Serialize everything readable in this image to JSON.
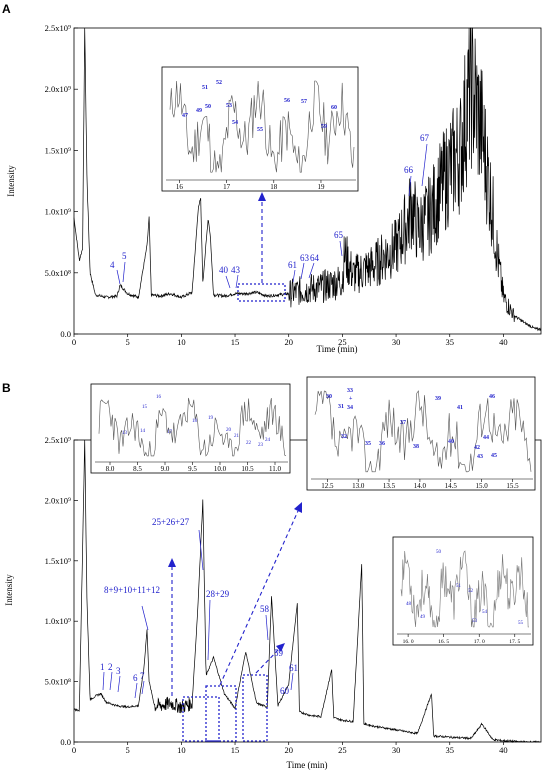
{
  "panels": [
    {
      "label": "A",
      "x_title": "Time (min)",
      "y_title": "Intensity",
      "x_ticks": [
        "0",
        "5",
        "10",
        "15",
        "20",
        "25",
        "30",
        "35",
        "40"
      ],
      "y_ticks": [
        "0.0",
        "5.0x10⁸",
        "1.0x10⁹",
        "1.5x10⁹",
        "2.0x10⁹",
        "2.5x10⁹"
      ],
      "peak_labels": [
        "4",
        "5",
        "40",
        "43",
        "61",
        "63",
        "64",
        "65",
        "66",
        "67"
      ],
      "insets": [
        {
          "x_ticks": [
            "16",
            "17",
            "18",
            "19"
          ],
          "peak_labels": [
            "47",
            "49",
            "50",
            "51",
            "52",
            "53",
            "54",
            "55",
            "56",
            "57",
            "59",
            "60"
          ]
        }
      ]
    },
    {
      "label": "B",
      "x_title": "Time (min)",
      "y_title": "Intensity",
      "x_ticks": [
        "0",
        "5",
        "10",
        "15",
        "20",
        "25",
        "30",
        "35",
        "40"
      ],
      "y_ticks": [
        "0.0",
        "5.0x10⁸",
        "1.0x10⁹",
        "1.5x10⁹",
        "2.0x10⁹",
        "2.5x10⁹"
      ],
      "peak_labels": [
        "1",
        "2",
        "3",
        "6",
        "7",
        "8+9+10+11+12",
        "25+26+27",
        "28+29",
        "58",
        "59",
        "60",
        "61"
      ],
      "insets": [
        {
          "x_ticks": [
            "8.0",
            "8.5",
            "9.0",
            "9.5",
            "10.0",
            "10.5",
            "11.0"
          ],
          "peak_labels": [
            "13",
            "14",
            "15",
            "16",
            "17",
            "18",
            "19",
            "20",
            "21",
            "22",
            "23",
            "24"
          ]
        },
        {
          "x_ticks": [
            "12.5",
            "13.0",
            "13.5",
            "14.0",
            "14.5",
            "15.0",
            "15.5"
          ],
          "peak_labels": [
            "30",
            "31",
            "32",
            "33",
            "+",
            "34",
            "35",
            "36",
            "37",
            "38",
            "39",
            "40",
            "41",
            "42",
            "43",
            "44",
            "45",
            "46"
          ]
        },
        {
          "x_ticks": [
            "16. 0",
            "16. 5",
            "17. 0",
            "17. 5"
          ],
          "peak_labels": [
            "48",
            "49",
            "50",
            "51",
            "52",
            "53",
            "54",
            "55"
          ]
        }
      ]
    }
  ],
  "chart_data": [
    {
      "type": "line",
      "panel": "A",
      "xlabel": "Time (min)",
      "ylabel": "Intensity",
      "xlim": [
        0,
        43.5
      ],
      "ylim": [
        0,
        2500000000
      ],
      "x": [
        0,
        0.5,
        0.8,
        1.0,
        1.2,
        1.5,
        2,
        3,
        4,
        4.3,
        5,
        6,
        6.8,
        7.0,
        7.2,
        8,
        9,
        10,
        11,
        11.6,
        11.8,
        12,
        12.5,
        12.7,
        13,
        14,
        15,
        16,
        17,
        18,
        19,
        20,
        21,
        22,
        23,
        24,
        25,
        25.2,
        26,
        27,
        28,
        29,
        30,
        31,
        31.5,
        32,
        33,
        34,
        35,
        36,
        36.5,
        37,
        38,
        39,
        39.5,
        40,
        41,
        42,
        43
      ],
      "series": [
        {
          "values": [
            950000000,
            600000000,
            700000000,
            2500000000,
            1300000000,
            500000000,
            320000000,
            300000000,
            310000000,
            400000000,
            330000000,
            300000000,
            720000000,
            950000000,
            320000000,
            310000000,
            330000000,
            300000000,
            340000000,
            1050000000,
            1100000000,
            420000000,
            950000000,
            800000000,
            320000000,
            310000000,
            330000000,
            330000000,
            340000000,
            310000000,
            320000000,
            330000000,
            350000000,
            370000000,
            380000000,
            410000000,
            440000000,
            650000000,
            480000000,
            520000000,
            560000000,
            650000000,
            700000000,
            900000000,
            1050000000,
            850000000,
            950000000,
            1150000000,
            1350000000,
            1500000000,
            1800000000,
            2050000000,
            1650000000,
            1000000000,
            600000000,
            300000000,
            150000000,
            90000000,
            40000000
          ]
        }
      ],
      "annotations": [
        "4",
        "5",
        "40",
        "43",
        "61",
        "63",
        "64",
        "65",
        "66",
        "67"
      ]
    },
    {
      "type": "line",
      "panel": "B",
      "xlabel": "Time (min)",
      "ylabel": "Intensity",
      "xlim": [
        0,
        43.5
      ],
      "ylim": [
        0,
        2500000000
      ],
      "x": [
        0,
        0.5,
        1.0,
        1.2,
        1.5,
        2,
        2.5,
        3,
        4,
        5,
        6,
        6.5,
        6.8,
        7,
        7.5,
        8,
        9,
        10,
        11,
        11.5,
        12,
        12.3,
        13,
        14,
        15,
        16,
        17,
        18,
        18.4,
        19,
        20,
        20.8,
        21,
        22,
        23,
        24,
        24.2,
        25,
        26,
        26.8,
        27,
        28,
        30,
        32,
        33.3,
        33.5,
        35,
        37,
        38,
        39,
        40,
        41,
        42,
        43
      ],
      "series": [
        {
          "values": [
            270000000,
            260000000,
            2500000000,
            1200000000,
            350000000,
            380000000,
            400000000,
            330000000,
            300000000,
            290000000,
            300000000,
            600000000,
            930000000,
            500000000,
            300000000,
            300000000,
            320000000,
            290000000,
            320000000,
            1050000000,
            2000000000,
            550000000,
            700000000,
            400000000,
            280000000,
            750000000,
            320000000,
            290000000,
            1200000000,
            300000000,
            480000000,
            1150000000,
            250000000,
            220000000,
            210000000,
            600000000,
            200000000,
            180000000,
            170000000,
            1480000000,
            150000000,
            130000000,
            100000000,
            70000000,
            400000000,
            50000000,
            40000000,
            30000000,
            150000000,
            20000000,
            10000000,
            5000000,
            0,
            0
          ]
        }
      ],
      "annotations": [
        "1",
        "2",
        "3",
        "6",
        "7",
        "8+9+10+11+12",
        "25+26+27",
        "28+29",
        "58",
        "59",
        "60",
        "61"
      ]
    }
  ]
}
